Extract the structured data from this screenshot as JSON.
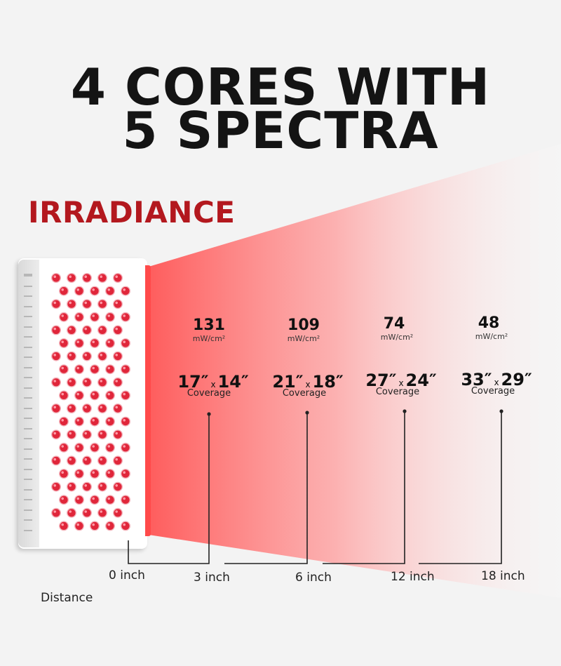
{
  "heading": {
    "line1": "4 CORES WITH",
    "line2": "5 SPECTRA"
  },
  "section_label": "IRRADIANCE",
  "colors": {
    "brand_red": "#b3181e",
    "beam_red": "#ff4040",
    "led": "#e0263a"
  },
  "measurements": [
    {
      "irradiance": "131",
      "unit": "mW/cm²",
      "cov_a": "17″",
      "cov_b": "14″",
      "coverage_label": "Coverage",
      "distance": "3 inch"
    },
    {
      "irradiance": "109",
      "unit": "mW/cm²",
      "cov_a": "21″",
      "cov_b": "18″",
      "coverage_label": "Coverage",
      "distance": "6 inch"
    },
    {
      "irradiance": "74",
      "unit": "mW/cm²",
      "cov_a": "27″",
      "cov_b": "24″",
      "coverage_label": "Coverage",
      "distance": "12 inch"
    },
    {
      "irradiance": "48",
      "unit": "mW/cm²",
      "cov_a": "33″",
      "cov_b": "29″",
      "coverage_label": "Coverage",
      "distance": "18 inch"
    }
  ],
  "coverage_separator": "x",
  "zero_distance": "0 inch",
  "distance_label": "Distance",
  "device": {
    "name": "red-light-panel",
    "led_rows": 20,
    "led_cols": 5
  }
}
